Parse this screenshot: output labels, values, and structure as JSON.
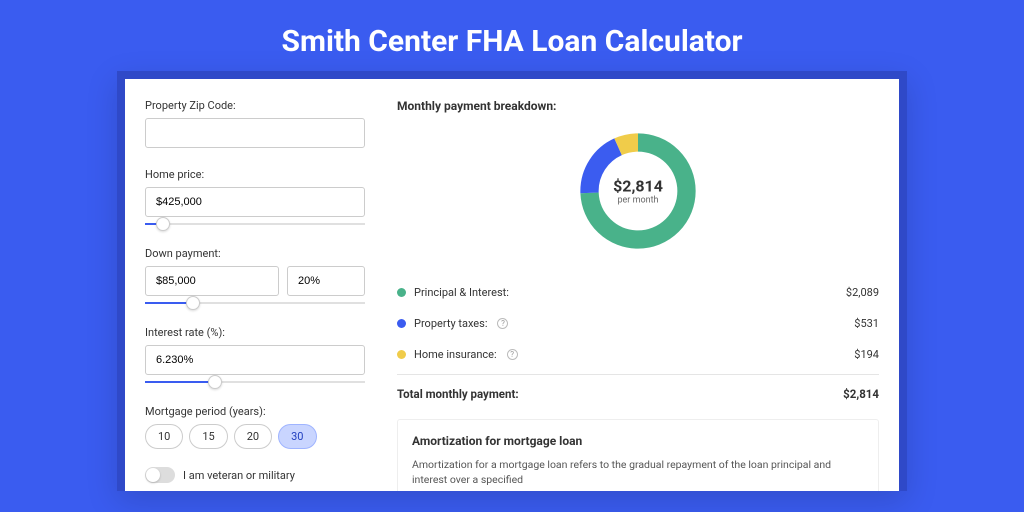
{
  "pageTitle": "Smith Center FHA Loan Calculator",
  "form": {
    "zipLabel": "Property Zip Code:",
    "zipValue": "",
    "homePriceLabel": "Home price:",
    "homePriceValue": "$425,000",
    "homePriceSliderPct": 8,
    "downPaymentLabel": "Down payment:",
    "downPaymentValue": "$85,000",
    "downPaymentPct": "20%",
    "downPaymentSliderPct": 22,
    "interestLabel": "Interest rate (%):",
    "interestValue": "6.230%",
    "interestSliderPct": 32,
    "mortgagePeriodLabel": "Mortgage period (years):",
    "periodOptions": [
      "10",
      "15",
      "20",
      "30"
    ],
    "periodSelected": "30",
    "veteranLabel": "I am veteran or military",
    "veteranOn": false
  },
  "breakdown": {
    "title": "Monthly payment breakdown:",
    "centerAmount": "$2,814",
    "centerSub": "per month",
    "items": [
      {
        "label": "Principal & Interest:",
        "value": "$2,089",
        "color": "#49b28a",
        "help": false
      },
      {
        "label": "Property taxes:",
        "value": "$531",
        "color": "#3b5cf0",
        "help": true
      },
      {
        "label": "Home insurance:",
        "value": "$194",
        "color": "#f0cc4a",
        "help": true
      }
    ],
    "totalLabel": "Total monthly payment:",
    "totalValue": "$2,814"
  },
  "chart": {
    "colors": {
      "principal": "#49b28a",
      "taxes": "#3b5cf0",
      "insurance": "#f0cc4a"
    }
  },
  "amort": {
    "title": "Amortization for mortgage loan",
    "text": "Amortization for a mortgage loan refers to the gradual repayment of the loan principal and interest over a specified"
  }
}
